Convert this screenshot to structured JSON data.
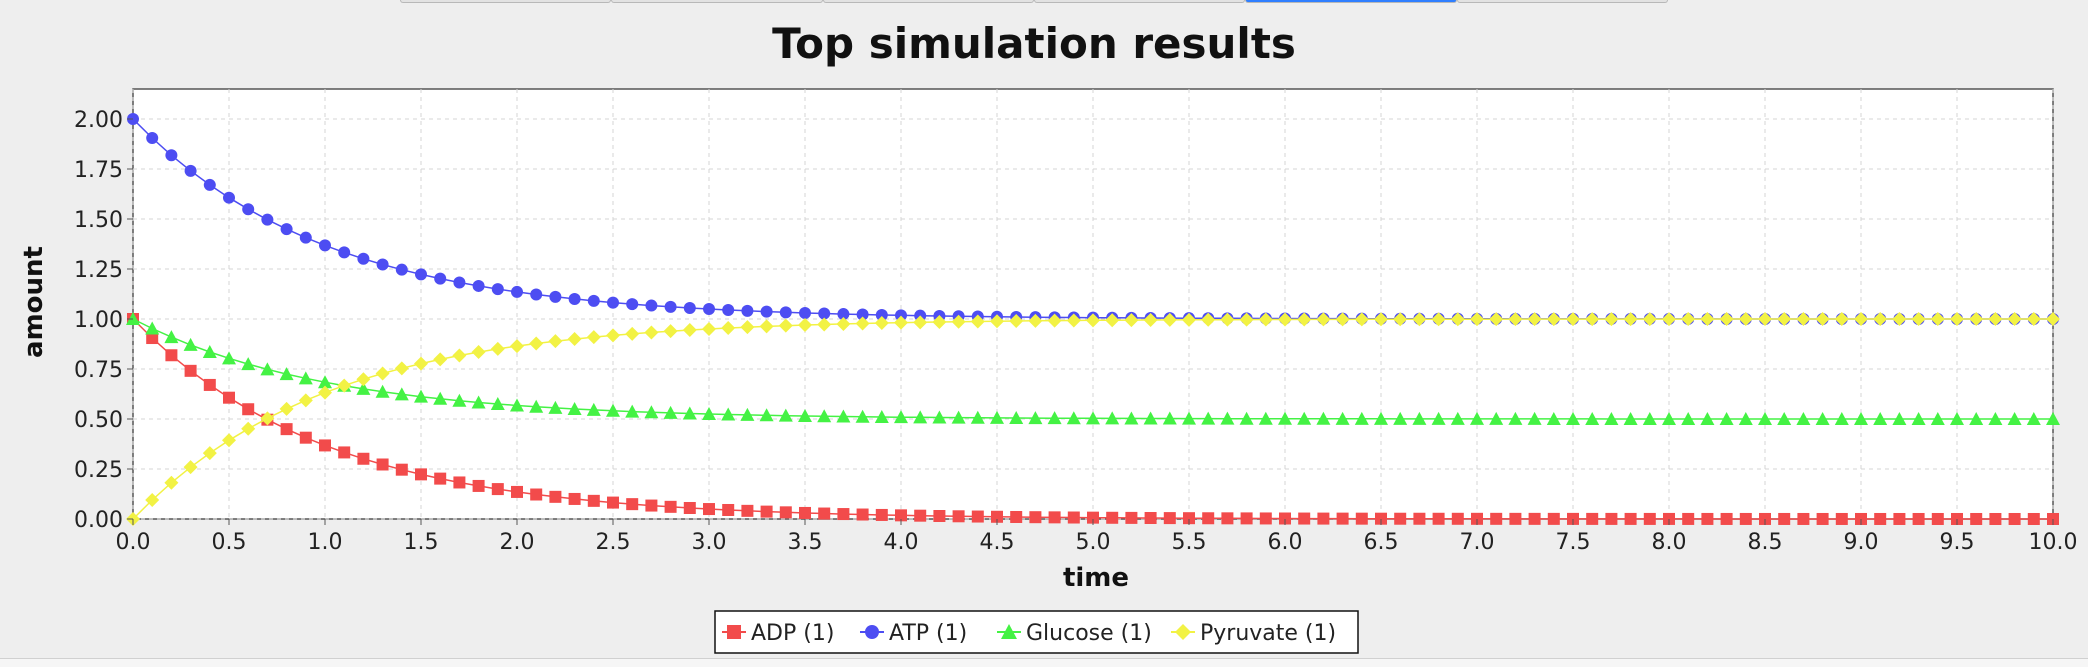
{
  "tabs": [
    "",
    "",
    "",
    "",
    "",
    ""
  ],
  "selected_tab_index": 4,
  "chart_data": {
    "type": "line",
    "title": "Top simulation results",
    "xlabel": "time",
    "ylabel": "amount",
    "xlim": [
      0.0,
      10.0
    ],
    "ylim": [
      0.0,
      2.15
    ],
    "x_ticks": [
      "0.0",
      "0.5",
      "1.0",
      "1.5",
      "2.0",
      "2.5",
      "3.0",
      "3.5",
      "4.0",
      "4.5",
      "5.0",
      "5.5",
      "6.0",
      "6.5",
      "7.0",
      "7.5",
      "8.0",
      "8.5",
      "9.0",
      "9.5",
      "10.0"
    ],
    "y_ticks": [
      "0.00",
      "0.25",
      "0.50",
      "0.75",
      "1.00",
      "1.25",
      "1.50",
      "1.75",
      "2.00"
    ],
    "grid": true,
    "legend_position": "bottom-center",
    "x_step": 0.1,
    "x_count": 101,
    "series": [
      {
        "name": "ADP (1)",
        "marker": "square",
        "color": "#f24b4b",
        "y0": 1.0,
        "y_inf": 0.0,
        "rate": 1.0
      },
      {
        "name": "ATP (1)",
        "marker": "circle",
        "color": "#4d4df2",
        "y0": 2.0,
        "y_inf": 1.0,
        "rate": 1.0
      },
      {
        "name": "Glucose (1)",
        "marker": "triangle",
        "color": "#44f244",
        "y0": 1.0,
        "y_inf": 0.5,
        "rate": 1.0
      },
      {
        "name": "Pyruvate (1)",
        "marker": "diamond",
        "color": "#f2f244",
        "y0": 0.0,
        "y_inf": 1.0,
        "rate": 1.0
      }
    ]
  }
}
